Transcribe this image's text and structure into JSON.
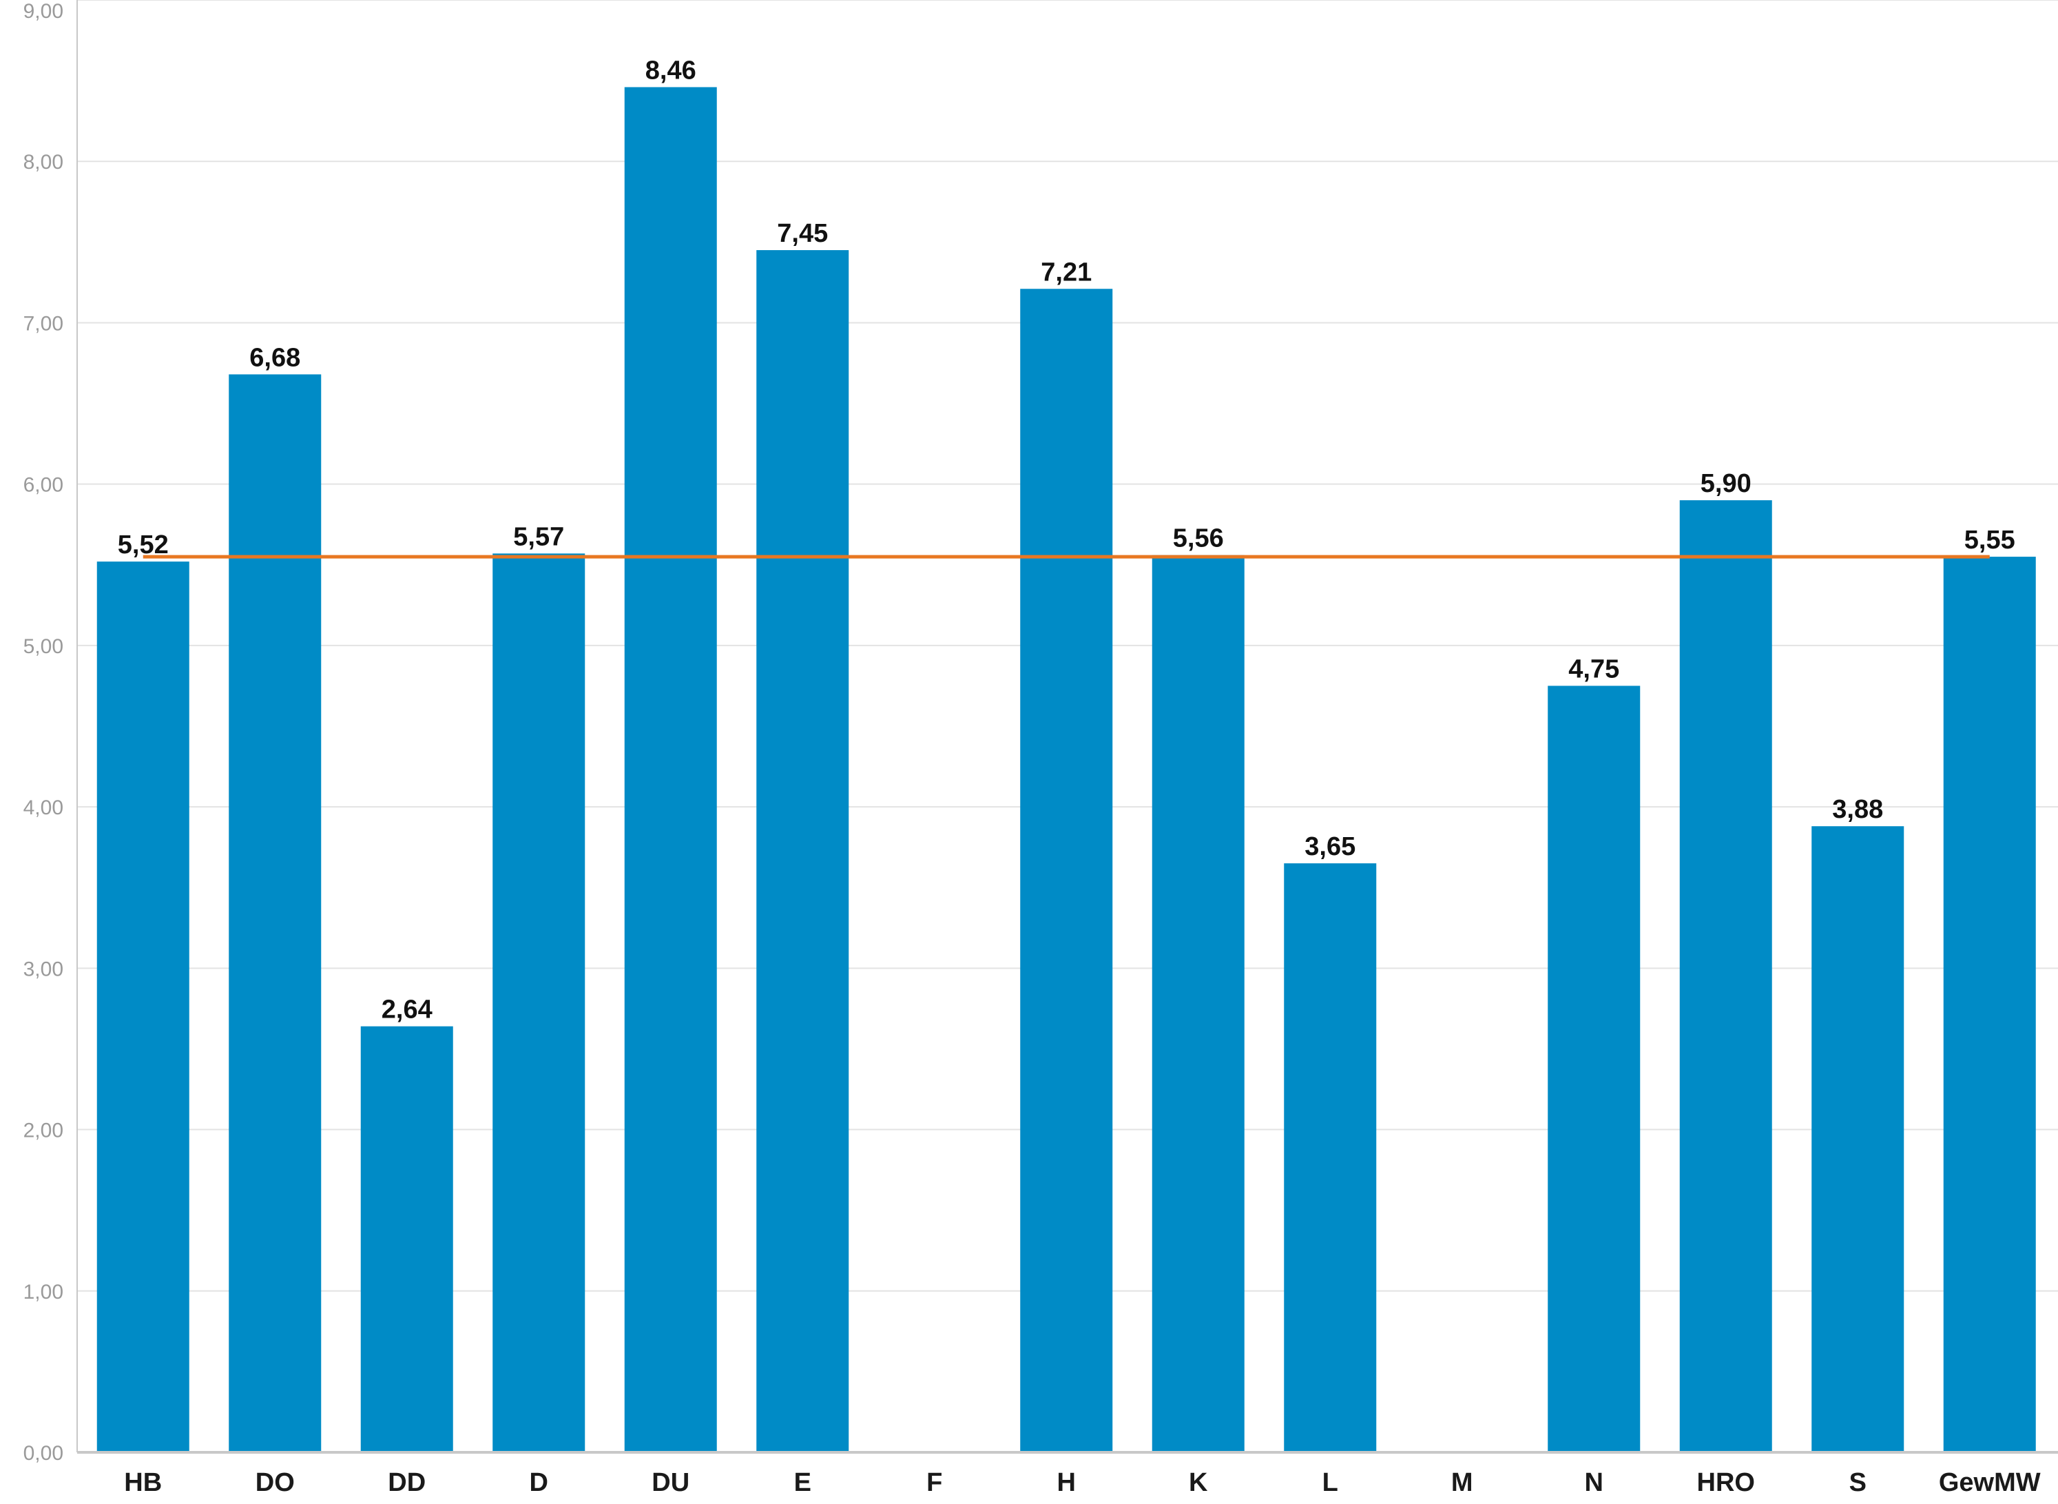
{
  "chart_data": {
    "type": "bar",
    "title": "",
    "xlabel": "",
    "ylabel": "",
    "categories": [
      "HB",
      "DO",
      "DD",
      "D",
      "DU",
      "E",
      "F",
      "H",
      "K",
      "L",
      "M",
      "N",
      "HRO",
      "S",
      "GewMW"
    ],
    "values": [
      5.52,
      6.68,
      2.64,
      5.57,
      8.46,
      7.45,
      null,
      7.21,
      5.56,
      3.65,
      null,
      4.75,
      5.9,
      3.88,
      5.55
    ],
    "value_labels": [
      "5,52",
      "6,68",
      "2,64",
      "5,57",
      "8,46",
      "7,45",
      "",
      "7,21",
      "5,56",
      "3,65",
      "",
      "4,75",
      "5,90",
      "3,88",
      "5,55"
    ],
    "ylim": [
      0,
      9
    ],
    "yticks": [
      0,
      1,
      2,
      3,
      4,
      5,
      6,
      7,
      8,
      9
    ],
    "ytick_labels": [
      "0,00",
      "1,00",
      "2,00",
      "3,00",
      "4,00",
      "5,00",
      "6,00",
      "7,00",
      "8,00",
      "9,00"
    ],
    "reference_line": {
      "value": 5.55
    },
    "grid": true,
    "colors": {
      "bar": "#008bc6",
      "reference_line": "#e87722",
      "grid": "#e3e3e3",
      "axis": "#c8c8c8"
    }
  }
}
